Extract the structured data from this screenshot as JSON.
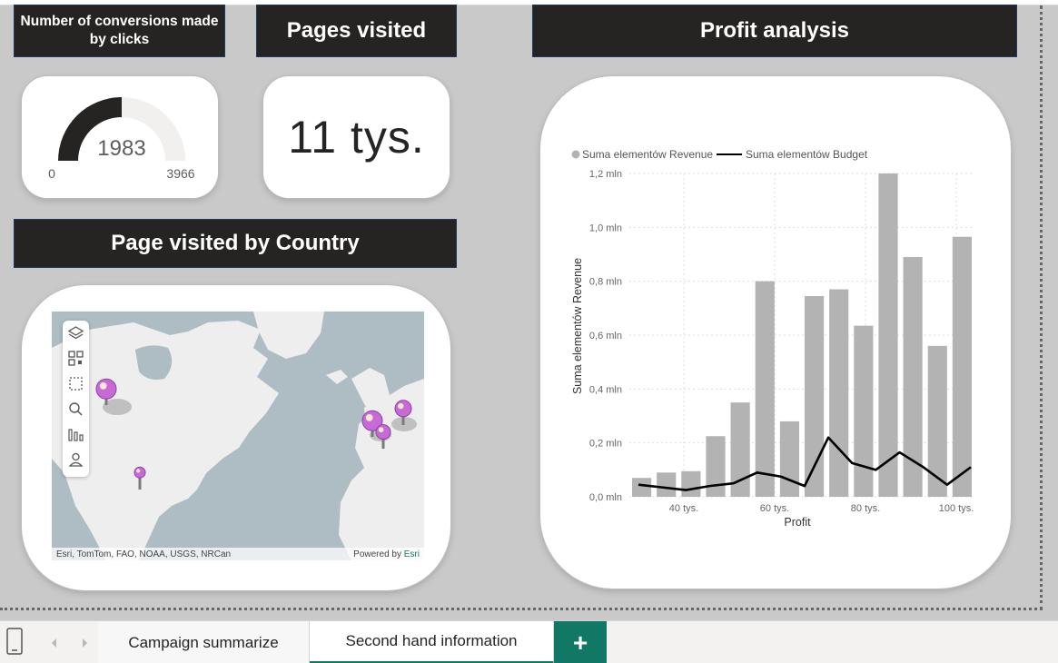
{
  "titles": {
    "conversions": "Number of conversions made by clicks",
    "pages_visited": "Pages visited",
    "profit": "Profit analysis",
    "country": "Page visited by Country"
  },
  "gauge": {
    "value": "1983",
    "min": "0",
    "max": "3966",
    "fill_fraction": 0.5
  },
  "pages_card": {
    "value": "11 tys."
  },
  "map": {
    "credits_left": "Esri, TomTom, FAO, NOAA, USGS, NRCan",
    "credits_prefix": "Powered by ",
    "credits_link": "Esri",
    "tools": [
      "layers-icon",
      "qr-icon",
      "select-rect-icon",
      "search-icon",
      "bars-icon",
      "person-icon"
    ],
    "pin_color": "#c86ad6"
  },
  "chart_data": {
    "type": "bar",
    "legend": [
      "Suma elementów Revenue",
      "Suma elementów Budget"
    ],
    "legend_position": "top-left",
    "xlabel": "Profit",
    "ylabel": "Suma elementów Revenue",
    "x_ticks": [
      "40 tys.",
      "60 tys.",
      "80 tys.",
      "100 tys."
    ],
    "y_ticks": [
      "0,0 mln",
      "0,2 mln",
      "0,4 mln",
      "0,6 mln",
      "0,8 mln",
      "1,0 mln",
      "1,2 mln"
    ],
    "ylim": [
      0,
      1.2
    ],
    "grid": true,
    "series": [
      {
        "name": "Suma elementów Revenue",
        "kind": "bar",
        "color": "#b3b3b3",
        "values": [
          0.07,
          0.09,
          0.095,
          0.225,
          0.35,
          0.8,
          0.28,
          0.745,
          0.77,
          0.635,
          1.2,
          0.89,
          0.56,
          0.965
        ]
      },
      {
        "name": "Suma elementów Budget",
        "kind": "line",
        "color": "#000000",
        "values": [
          0.045,
          0.035,
          0.025,
          0.04,
          0.05,
          0.09,
          0.075,
          0.04,
          0.22,
          0.125,
          0.1,
          0.165,
          0.11,
          0.045,
          0.11
        ]
      }
    ]
  },
  "tabs": {
    "tab1": "Campaign summarize",
    "tab2": "Second hand information",
    "add": "+"
  }
}
